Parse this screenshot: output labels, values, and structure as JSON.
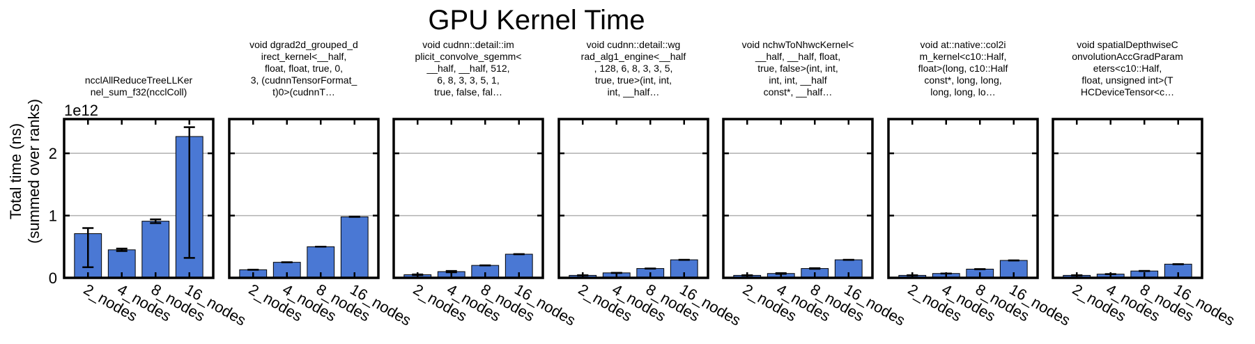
{
  "title": "GPU Kernel Time",
  "colors": {
    "bar": "#4a78d4",
    "grid": "#b0b0b0",
    "frame": "#000000"
  },
  "chart_data": {
    "type": "bar",
    "title": "GPU Kernel Time",
    "ylabel": [
      "Total time (ns)",
      "(summed over ranks)"
    ],
    "y_offset_label": "1e12",
    "y_ticks": [
      0,
      1,
      2
    ],
    "ylim": [
      0,
      2.55
    ],
    "y_scale_multiplier": 1000000000000.0,
    "grid": "y",
    "categories": [
      "2_nodes",
      "4_nodes",
      "8_nodes",
      "16_nodes"
    ],
    "panels": [
      {
        "title_lines": [
          "ncclAllReduceTreeLLKer",
          "nel_sum_f32(ncclColl)"
        ],
        "values": [
          0.71,
          0.45,
          0.91,
          2.27
        ],
        "errors": [
          [
            0.17,
            0.8
          ],
          [
            0.43,
            0.47
          ],
          [
            0.88,
            0.94
          ],
          [
            0.32,
            2.42
          ]
        ]
      },
      {
        "title_lines": [
          "void dgrad2d_grouped_d",
          "irect_kernel<__half,",
          "float, float, true, 0,",
          "3, (cudnnTensorFormat_",
          "t)0>(cudnnT…"
        ],
        "values": [
          0.13,
          0.25,
          0.5,
          0.98
        ],
        "errors": [
          [
            0.13,
            0.13
          ],
          [
            0.25,
            0.25
          ],
          [
            0.5,
            0.5
          ],
          [
            0.98,
            0.98
          ]
        ]
      },
      {
        "title_lines": [
          "void cudnn::detail::im",
          "plicit_convolve_sgemm<",
          "__half, __half, 512,",
          "6, 8, 3, 3, 5, 1,",
          "true, false, fal…"
        ],
        "values": [
          0.05,
          0.1,
          0.2,
          0.38
        ],
        "errors": [
          [
            0.045,
            0.055
          ],
          [
            0.09,
            0.11
          ],
          [
            0.2,
            0.2
          ],
          [
            0.38,
            0.38
          ]
        ]
      },
      {
        "title_lines": [
          "void cudnn::detail::wg",
          "rad_alg1_engine<__half",
          ", 128, 6, 8, 3, 3, 5,",
          "true, true>(int, int,",
          "int, __half…"
        ],
        "values": [
          0.04,
          0.08,
          0.15,
          0.29
        ],
        "errors": [
          [
            0.04,
            0.04
          ],
          [
            0.08,
            0.08
          ],
          [
            0.15,
            0.15
          ],
          [
            0.29,
            0.29
          ]
        ]
      },
      {
        "title_lines": [
          "void nchwToNhwcKernel<",
          "__half, __half, float,",
          "true, false>(int, int,",
          "int, int, __half",
          "const*, __half…"
        ],
        "values": [
          0.04,
          0.07,
          0.15,
          0.29
        ],
        "errors": [
          [
            0.04,
            0.04
          ],
          [
            0.065,
            0.075
          ],
          [
            0.145,
            0.155
          ],
          [
            0.29,
            0.29
          ]
        ]
      },
      {
        "title_lines": [
          "void at::native::col2i",
          "m_kernel<c10::Half,",
          "float>(long, c10::Half",
          "const*, long, long,",
          "long, long, lo…"
        ],
        "values": [
          0.04,
          0.07,
          0.14,
          0.28
        ],
        "errors": [
          [
            0.04,
            0.04
          ],
          [
            0.07,
            0.07
          ],
          [
            0.14,
            0.14
          ],
          [
            0.28,
            0.28
          ]
        ]
      },
      {
        "title_lines": [
          "void spatialDepthwiseC",
          "onvolutionAccGradParam",
          "eters<c10::Half,",
          "float, unsigned int>(T",
          "HCDeviceTensor<c…"
        ],
        "values": [
          0.04,
          0.06,
          0.11,
          0.22
        ],
        "errors": [
          [
            0.04,
            0.04
          ],
          [
            0.06,
            0.06
          ],
          [
            0.11,
            0.11
          ],
          [
            0.22,
            0.22
          ]
        ]
      }
    ]
  }
}
